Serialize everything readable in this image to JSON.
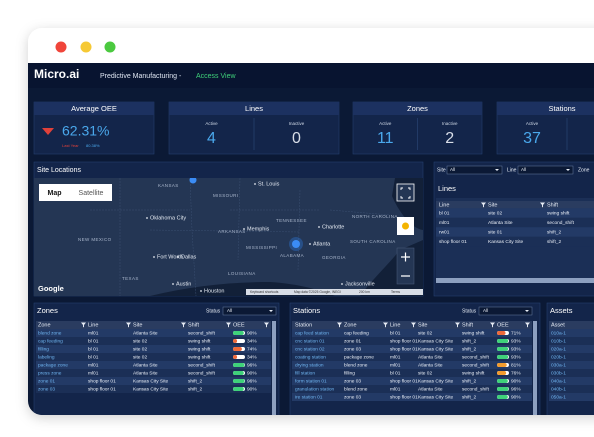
{
  "header": {
    "logo": "Micro.ai",
    "title": "Predictive Manufacturing - ",
    "view": "Access View"
  },
  "kpis": {
    "oee": {
      "title": "Average OEE",
      "value": "62.31%",
      "last_year_label": "Last Year",
      "last_year": "80.38%"
    },
    "cards": [
      {
        "title": "Lines",
        "active_label": "Active",
        "active": 4,
        "inactive_label": "Inactive",
        "inactive": 0
      },
      {
        "title": "Zones",
        "active_label": "Active",
        "active": 11,
        "inactive_label": "Inactive",
        "inactive": 2
      },
      {
        "title": "Stations",
        "active_label": "Active",
        "active": 37
      }
    ]
  },
  "map": {
    "title": "Site Locations",
    "buttons": [
      "Map",
      "Satellite"
    ],
    "labels": [
      "KANSAS",
      "St. Louis",
      "MISSOURI",
      "TENNESSEE",
      "Charlotte",
      "NORTH CAROLINA",
      "Oklahoma City",
      "Memphis",
      "Atlanta",
      "SOUTH CAROLINA",
      "ARKANSAS",
      "MISSISSIPPI",
      "ALABAMA",
      "GEORGIA",
      "Fort Worth",
      "Dallas",
      "NEW MEXICO",
      "LOUISIANA",
      "Jacksonville",
      "Austin",
      "Houston",
      "TEXAS"
    ],
    "logo": "Google",
    "attribution": [
      "Keyboard shortcuts",
      "Map data ©2025 Google, INEGI",
      "200 km",
      "Terms"
    ]
  },
  "lines": {
    "filters": [
      {
        "label": "Site",
        "value": "All"
      },
      {
        "label": "Line",
        "value": "All"
      },
      {
        "label": "Zone"
      }
    ],
    "title": "Lines",
    "columns": [
      "Line",
      "Site",
      "Shift"
    ],
    "rows": [
      [
        "bl 01",
        "site 02",
        "swing shift"
      ],
      [
        "ml01",
        "Atlanta Site",
        "second_shift"
      ],
      [
        "rw01",
        "site 01",
        "shift_2"
      ],
      [
        "shop floor 01",
        "Kansas City Site",
        "shift_2"
      ]
    ]
  },
  "zones": {
    "title": "Zones",
    "status_label": "Status",
    "status_value": "All",
    "columns": [
      "Zone",
      "Line",
      "Site",
      "Shift",
      "OEE"
    ],
    "rows": [
      [
        "blend zone",
        "ml01",
        "Atlanta Site",
        "second_shift",
        "90%"
      ],
      [
        "cap feeding",
        "bl 01",
        "site 02",
        "swing shift",
        "34%"
      ],
      [
        "filling",
        "bl 01",
        "site 02",
        "swing shift",
        "74%"
      ],
      [
        "labeling",
        "bl 01",
        "site 02",
        "swing shift",
        "34%"
      ],
      [
        "package zone",
        "ml01",
        "Atlanta Site",
        "second_shift",
        "96%"
      ],
      [
        "press zone",
        "ml01",
        "Atlanta Site",
        "second_shift",
        "90%"
      ],
      [
        "zone 01",
        "shop floor 01",
        "Kansas City Site",
        "shift_2",
        "96%"
      ],
      [
        "zone 03",
        "shop floor 01",
        "Kansas City Site",
        "shift_2",
        "90%"
      ]
    ]
  },
  "stations": {
    "title": "Stations",
    "status_label": "Status",
    "status_value": "All",
    "columns": [
      "Station",
      "Zone",
      "Line",
      "Site",
      "Shift",
      "OEE"
    ],
    "rows": [
      [
        "cap feed station",
        "cap feeding",
        "bl 01",
        "site 02",
        "swing shift",
        "71%"
      ],
      [
        "cnc station 01",
        "zone 01",
        "shop floor 01",
        "Kansas City Site",
        "shift_2",
        "93%"
      ],
      [
        "cnc station 02",
        "zone 03",
        "shop floor 01",
        "Kansas City Site",
        "shift_2",
        "93%"
      ],
      [
        "coating station",
        "package zone",
        "ml01",
        "Atlanta Site",
        "second_shift",
        "93%"
      ],
      [
        "drying station",
        "blend zone",
        "ml01",
        "Atlanta Site",
        "second_shift",
        "81%"
      ],
      [
        "fill station",
        "filling",
        "bl 01",
        "site 02",
        "swing shift",
        "76%"
      ],
      [
        "form station 01",
        "zone 03",
        "shop floor 01",
        "Kansas City Site",
        "shift_2",
        "90%"
      ],
      [
        "granulation station",
        "blend zone",
        "ml01",
        "Atlanta Site",
        "second_shift",
        "96%"
      ],
      [
        "ire station 01",
        "zone 03",
        "shop floor 01",
        "Kansas City Site",
        "shift_2",
        "90%"
      ]
    ]
  },
  "assets": {
    "title": "Assets",
    "columns": [
      "Asset"
    ],
    "rows": [
      [
        "010a-1"
      ],
      [
        "010b-1"
      ],
      [
        "020a-1"
      ],
      [
        "020b-1"
      ],
      [
        "030a-1"
      ],
      [
        "030b-1"
      ],
      [
        "040a-1"
      ],
      [
        "040b-1"
      ],
      [
        "050a-1"
      ]
    ]
  }
}
